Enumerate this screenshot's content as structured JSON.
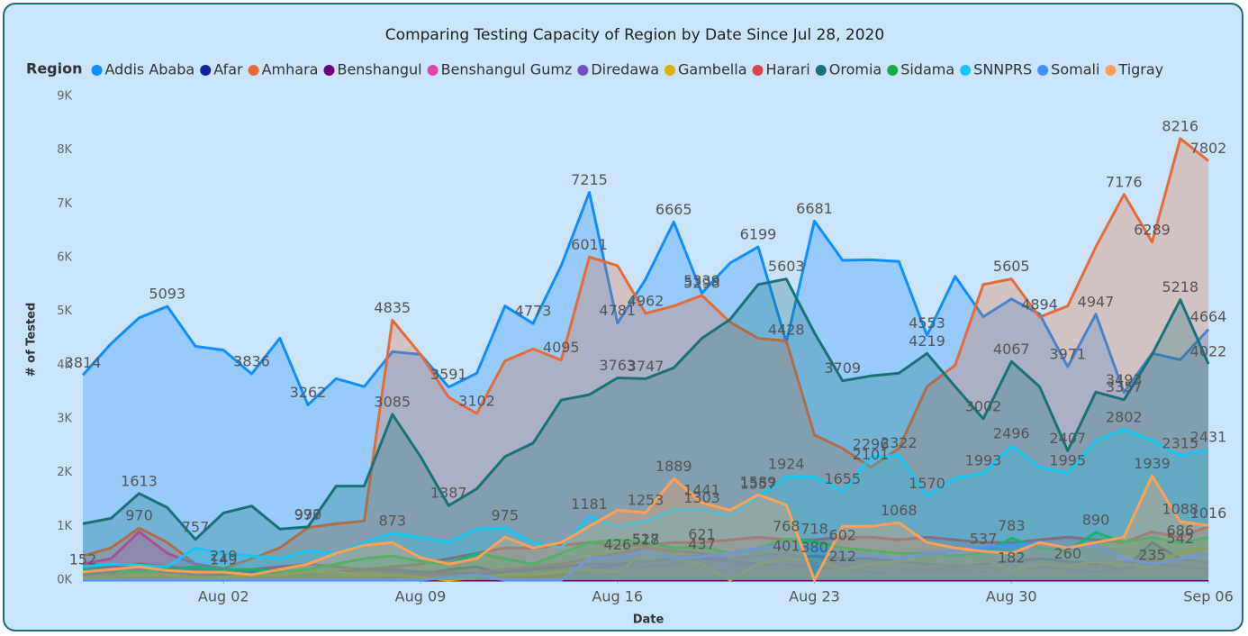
{
  "chart_data": {
    "type": "area",
    "title": "Comparing Testing Capacity of Region by Date Since Jul 28, 2020",
    "legend_title": "Region",
    "y_label": "# of Tested",
    "x_label": "Date",
    "x": [
      "2020-07-28",
      "2020-07-29",
      "2020-07-30",
      "2020-07-31",
      "2020-08-01",
      "2020-08-02",
      "2020-08-03",
      "2020-08-04",
      "2020-08-05",
      "2020-08-06",
      "2020-08-07",
      "2020-08-08",
      "2020-08-09",
      "2020-08-10",
      "2020-08-11",
      "2020-08-12",
      "2020-08-13",
      "2020-08-14",
      "2020-08-15",
      "2020-08-16",
      "2020-08-17",
      "2020-08-18",
      "2020-08-19",
      "2020-08-20",
      "2020-08-21",
      "2020-08-22",
      "2020-08-23",
      "2020-08-24",
      "2020-08-25",
      "2020-08-26",
      "2020-08-27",
      "2020-08-28",
      "2020-08-29",
      "2020-08-30",
      "2020-08-31",
      "2020-09-01",
      "2020-09-02",
      "2020-09-03",
      "2020-09-04",
      "2020-09-05",
      "2020-09-06"
    ],
    "xlim": [
      "2020-07-28",
      "2020-09-06"
    ],
    "xticks": [
      {
        "value": "2020-08-02",
        "label": "Aug 02"
      },
      {
        "value": "2020-08-09",
        "label": "Aug 09"
      },
      {
        "value": "2020-08-16",
        "label": "Aug 16"
      },
      {
        "value": "2020-08-23",
        "label": "Aug 23"
      },
      {
        "value": "2020-08-30",
        "label": "Aug 30"
      },
      {
        "value": "2020-09-06",
        "label": "Sep 06"
      }
    ],
    "ylim": [
      0,
      9000
    ],
    "yticks": [
      {
        "value": 0,
        "label": "0K"
      },
      {
        "value": 1000,
        "label": "1K"
      },
      {
        "value": 2000,
        "label": "2K"
      },
      {
        "value": 3000,
        "label": "3K"
      },
      {
        "value": 4000,
        "label": "4K"
      },
      {
        "value": 5000,
        "label": "5K"
      },
      {
        "value": 6000,
        "label": "6K"
      },
      {
        "value": 7000,
        "label": "7K"
      },
      {
        "value": 8000,
        "label": "8K"
      },
      {
        "value": 9000,
        "label": "9K"
      }
    ],
    "grid": false,
    "series": [
      {
        "name": "Addis Ababa",
        "color": "#118DFF",
        "values": [
          3814,
          4400,
          4880,
          5093,
          4350,
          4280,
          3836,
          4500,
          3262,
          3750,
          3600,
          4250,
          4200,
          3591,
          3850,
          5100,
          4773,
          5850,
          7215,
          4781,
          5600,
          6665,
          5339,
          5900,
          6199,
          4428,
          6681,
          5950,
          5960,
          5930,
          4553,
          5650,
          4900,
          5230,
          4950,
          3971,
          4947,
          3493,
          4220,
          4100,
          4664
        ],
        "value_labels": [
          "3814",
          null,
          null,
          "5093",
          null,
          null,
          "3836",
          null,
          "3262",
          null,
          null,
          null,
          null,
          "3591",
          null,
          null,
          "4773",
          null,
          "7215",
          "4781",
          null,
          "6665",
          "5339",
          null,
          "6199",
          "4428",
          "6681",
          null,
          null,
          null,
          "4553",
          null,
          null,
          null,
          null,
          "3971",
          "4947",
          "3493",
          null,
          null,
          "4664"
        ]
      },
      {
        "name": "Afar",
        "color": "#12239E",
        "values": [
          0,
          0,
          0,
          0,
          0,
          0,
          0,
          0,
          0,
          0,
          0,
          50,
          100,
          200,
          250,
          100,
          50,
          100,
          200,
          300,
          350,
          400,
          450,
          350,
          300,
          400,
          450,
          400,
          400,
          350,
          300,
          250,
          300,
          350,
          400,
          350,
          300,
          200,
          700,
          400,
          313
        ]
      },
      {
        "name": "Amhara",
        "color": "#E66C37",
        "values": [
          450,
          600,
          970,
          700,
          300,
          219,
          400,
          600,
          977,
          1050,
          1100,
          4835,
          4200,
          3400,
          3102,
          4080,
          4300,
          4095,
          6011,
          5850,
          4962,
          5100,
          5298,
          4800,
          4500,
          4450,
          2700,
          2450,
          2101,
          2450,
          3600,
          4000,
          5500,
          5605,
          4894,
          5100,
          6200,
          7176,
          6289,
          8216,
          7802
        ],
        "value_labels": [
          null,
          null,
          "970",
          null,
          null,
          "219",
          null,
          null,
          "977",
          null,
          null,
          "4835",
          null,
          null,
          "3102",
          null,
          null,
          "4095",
          "6011",
          null,
          "4962",
          null,
          "5298",
          null,
          null,
          null,
          null,
          null,
          "2101",
          null,
          null,
          null,
          null,
          "5605",
          "4894",
          null,
          null,
          "7176",
          "6289",
          "8216",
          "7802"
        ]
      },
      {
        "name": "Benshangul",
        "color": "#6B007B",
        "values": [
          60,
          30,
          0,
          0,
          0,
          0,
          0,
          0,
          0,
          0,
          0,
          0,
          0,
          0,
          0,
          0,
          0,
          0,
          0,
          0,
          0,
          0,
          0,
          0,
          0,
          0,
          0,
          0,
          0,
          0,
          0,
          0,
          0,
          0,
          0,
          0,
          0,
          0,
          0,
          0,
          0
        ]
      },
      {
        "name": "Benshangul Gumz",
        "color": "#E044A7",
        "values": [
          300,
          400,
          900,
          500,
          300,
          200,
          150,
          200,
          100,
          150,
          200,
          150,
          100,
          100,
          150,
          200,
          250,
          300,
          400,
          500,
          600,
          550,
          500,
          400,
          450,
          500,
          350,
          300,
          250,
          200,
          250,
          300,
          250,
          200,
          200,
          300,
          250,
          350,
          400,
          300,
          350
        ]
      },
      {
        "name": "Diredawa",
        "color": "#744EC2",
        "values": [
          100,
          150,
          200,
          150,
          100,
          100,
          150,
          100,
          100,
          150,
          200,
          200,
          150,
          150,
          100,
          150,
          200,
          250,
          300,
          300,
          250,
          300,
          400,
          350,
          300,
          300,
          250,
          200,
          150,
          150,
          200,
          200,
          150,
          200,
          250,
          200,
          150,
          200,
          300,
          250,
          200
        ]
      },
      {
        "name": "Gambella",
        "color": "#D9B300",
        "values": [
          50,
          50,
          100,
          100,
          50,
          50,
          100,
          100,
          150,
          150,
          100,
          100,
          50,
          0,
          50,
          100,
          100,
          150,
          200,
          150,
          518,
          400,
          300,
          0,
          300,
          401,
          380,
          212,
          300,
          350,
          400,
          450,
          400,
          182,
          300,
          260,
          350,
          300,
          235,
          542,
          600
        ],
        "value_labels": [
          null,
          null,
          null,
          null,
          null,
          null,
          null,
          null,
          null,
          null,
          null,
          null,
          null,
          null,
          null,
          null,
          null,
          null,
          null,
          null,
          "518",
          null,
          null,
          null,
          null,
          "401",
          "380",
          "212",
          null,
          null,
          null,
          null,
          null,
          "182",
          null,
          "260",
          null,
          null,
          "235",
          "542",
          null
        ]
      },
      {
        "name": "Harari",
        "color": "#D64550",
        "values": [
          200,
          250,
          300,
          250,
          200,
          150,
          200,
          250,
          300,
          250,
          200,
          250,
          300,
          400,
          500,
          600,
          600,
          650,
          700,
          650,
          650,
          700,
          700,
          750,
          800,
          750,
          750,
          800,
          800,
          750,
          800,
          750,
          700,
          700,
          750,
          800,
          750,
          700,
          900,
          800,
          1000
        ]
      },
      {
        "name": "Oromia",
        "color": "#197278",
        "values": [
          1050,
          1150,
          1613,
          1350,
          757,
          1250,
          1380,
          950,
          990,
          1750,
          1750,
          3085,
          2300,
          1387,
          1700,
          2300,
          2550,
          3350,
          3450,
          3763,
          3747,
          3950,
          4500,
          4850,
          5500,
          5603,
          4600,
          3709,
          3800,
          3850,
          4219,
          3600,
          3002,
          4067,
          3600,
          2407,
          3500,
          3357,
          4200,
          5218,
          4022
        ],
        "value_labels": [
          null,
          null,
          "1613",
          null,
          "757",
          null,
          null,
          null,
          "990",
          null,
          null,
          "3085",
          null,
          "1387",
          null,
          null,
          null,
          null,
          null,
          "3763",
          "3747",
          null,
          null,
          null,
          null,
          "5603",
          null,
          "3709",
          null,
          null,
          "4219",
          null,
          "3002",
          "4067",
          null,
          "2407",
          null,
          "3357",
          null,
          "5218",
          "4022"
        ]
      },
      {
        "name": "Sidama",
        "color": "#1AAB40",
        "values": [
          200,
          200,
          150,
          200,
          250,
          200,
          200,
          150,
          200,
          300,
          400,
          450,
          350,
          300,
          500,
          400,
          300,
          500,
          700,
          750,
          700,
          600,
          621,
          500,
          600,
          768,
          718,
          602,
          550,
          500,
          500,
          450,
          500,
          783,
          600,
          542,
          890,
          700,
          800,
          686,
          800
        ],
        "value_labels": [
          null,
          null,
          null,
          null,
          null,
          null,
          null,
          null,
          null,
          null,
          null,
          null,
          null,
          null,
          null,
          null,
          null,
          null,
          null,
          null,
          null,
          null,
          "621",
          null,
          null,
          "768",
          "718",
          "602",
          null,
          null,
          null,
          null,
          null,
          "783",
          null,
          null,
          "890",
          null,
          null,
          "686",
          null
        ]
      },
      {
        "name": "SNNPRS",
        "color": "#15C6F4",
        "values": [
          250,
          300,
          280,
          250,
          600,
          500,
          450,
          400,
          550,
          500,
          700,
          873,
          800,
          700,
          950,
          975,
          700,
          600,
          1181,
          1000,
          1100,
          1300,
          1303,
          1200,
          1557,
          1924,
          1924,
          1655,
          2296,
          2322,
          1570,
          1900,
          1993,
          2496,
          2100,
          1995,
          2600,
          2802,
          2600,
          2315,
          2431
        ],
        "value_labels": [
          null,
          null,
          null,
          null,
          null,
          null,
          null,
          null,
          null,
          null,
          null,
          "873",
          null,
          null,
          null,
          "975",
          null,
          null,
          "1181",
          null,
          null,
          null,
          "1303",
          null,
          "1557",
          "1924",
          null,
          "1655",
          "2296",
          "2322",
          "1570",
          null,
          "1993",
          "2496",
          null,
          "1995",
          null,
          "2802",
          null,
          "2315",
          "2431"
        ]
      },
      {
        "name": "Somali",
        "color": "#4092FF",
        "values": [
          0,
          0,
          0,
          0,
          0,
          0,
          0,
          0,
          0,
          0,
          0,
          0,
          0,
          50,
          100,
          0,
          0,
          0,
          400,
          426,
          527,
          400,
          437,
          500,
          600,
          650,
          600,
          500,
          450,
          400,
          500,
          550,
          600,
          650,
          700,
          600,
          650,
          400,
          300,
          400,
          500
        ],
        "value_labels": [
          null,
          null,
          null,
          null,
          null,
          null,
          null,
          null,
          null,
          null,
          null,
          null,
          null,
          null,
          null,
          null,
          null,
          null,
          null,
          "426",
          "527",
          null,
          "437",
          null,
          null,
          null,
          null,
          null,
          null,
          null,
          null,
          null,
          null,
          null,
          null,
          null,
          null,
          null,
          null,
          null,
          null
        ]
      },
      {
        "name": "Tigray",
        "color": "#FFA058",
        "values": [
          152,
          200,
          250,
          180,
          150,
          149,
          100,
          200,
          300,
          500,
          650,
          700,
          420,
          300,
          400,
          800,
          600,
          700,
          1000,
          1300,
          1253,
          1889,
          1441,
          1300,
          1589,
          1400,
          0,
          1000,
          1000,
          1068,
          700,
          600,
          537,
          500,
          700,
          600,
          700,
          800,
          1939,
          1088,
          1016
        ],
        "value_labels": [
          "152",
          null,
          null,
          null,
          null,
          "149",
          null,
          null,
          null,
          null,
          null,
          null,
          null,
          null,
          null,
          null,
          null,
          null,
          null,
          null,
          "1253",
          "1889",
          "1441",
          null,
          "1589",
          null,
          null,
          null,
          null,
          "1068",
          null,
          null,
          "537",
          null,
          null,
          null,
          null,
          null,
          "1939",
          "1088",
          "1016"
        ]
      }
    ]
  }
}
